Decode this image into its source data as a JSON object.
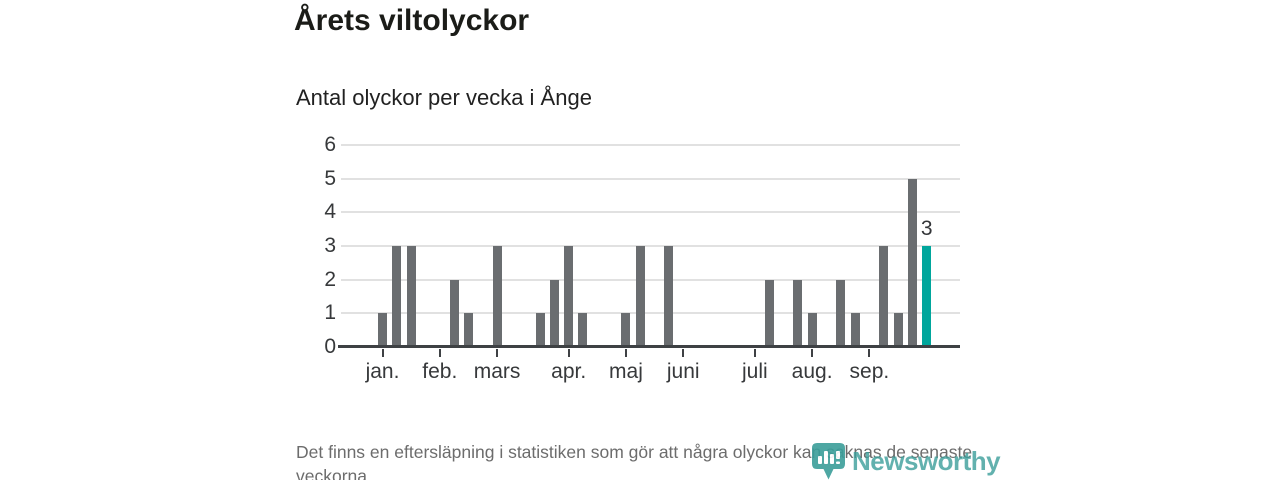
{
  "header": {
    "title": "Årets viltolyckor",
    "subtitle": "Antal olyckor per vecka i Ånge"
  },
  "chart_data": {
    "type": "bar",
    "title": "Antal olyckor per vecka i Ånge",
    "xlabel": "",
    "ylabel": "",
    "x_unit": "vecka (week of year, weeks 1-39)",
    "first_week": 1,
    "values": [
      1,
      3,
      3,
      0,
      0,
      2,
      1,
      0,
      3,
      0,
      0,
      1,
      2,
      3,
      1,
      0,
      0,
      1,
      3,
      0,
      3,
      0,
      0,
      0,
      0,
      0,
      0,
      2,
      0,
      2,
      1,
      0,
      2,
      1,
      0,
      3,
      1,
      5,
      3
    ],
    "ylim": [
      0,
      6
    ],
    "y_ticks": [
      0,
      1,
      2,
      3,
      4,
      5,
      6
    ],
    "month_ticks": [
      {
        "label": "jan.",
        "week": 1
      },
      {
        "label": "feb.",
        "week": 5
      },
      {
        "label": "mars",
        "week": 9
      },
      {
        "label": "apr.",
        "week": 14
      },
      {
        "label": "maj",
        "week": 18
      },
      {
        "label": "juni",
        "week": 22
      },
      {
        "label": "juli",
        "week": 27
      },
      {
        "label": "aug.",
        "week": 31
      },
      {
        "label": "sep.",
        "week": 35
      }
    ],
    "highlight": {
      "index": 38,
      "value": 3,
      "label": "3"
    },
    "grid": true,
    "legend": false,
    "colors": {
      "bar": "#6a6d70",
      "highlight_bar": "#00a69c",
      "axis": "#3e4144",
      "gridline": "#e1e1e1",
      "tick_label": "#37393b"
    }
  },
  "footer": {
    "note": "Det finns en eftersläpning i statistiken som gör att några olyckor kan saknas de senaste veckorna.",
    "brand": "Newsworthy",
    "brand_color": "#3b9e9a"
  }
}
